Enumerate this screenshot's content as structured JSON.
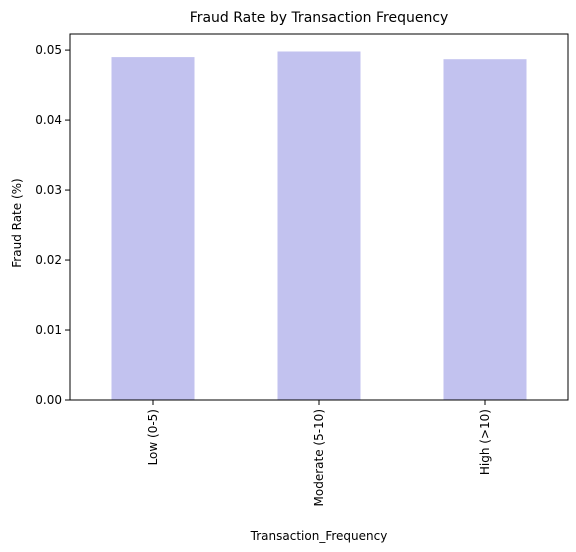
{
  "chart_data": {
    "type": "bar",
    "title": "Fraud Rate by Transaction Frequency",
    "xlabel": "Transaction_Frequency",
    "ylabel": "Fraud Rate (%)",
    "categories": [
      "Low (0-5)",
      "Moderate (5-10)",
      "High (>10)"
    ],
    "values": [
      0.049,
      0.0498,
      0.0487
    ],
    "ylim": [
      0,
      0.0523
    ],
    "yticks": [
      0.0,
      0.01,
      0.02,
      0.03,
      0.04,
      0.05
    ],
    "ytick_labels": [
      "0.00",
      "0.01",
      "0.02",
      "0.03",
      "0.04",
      "0.05"
    ],
    "bar_color": "#c2c2ef",
    "grid": false,
    "legend": "none"
  }
}
